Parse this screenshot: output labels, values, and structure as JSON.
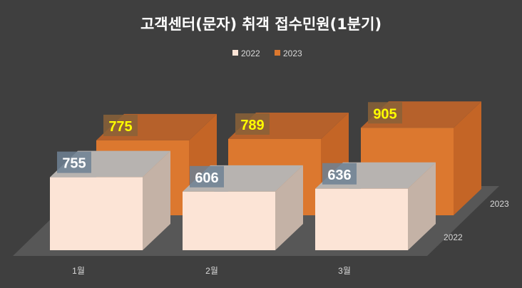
{
  "chart_data": {
    "type": "bar",
    "title": "고객센터(문자) 취객 접수민원(1분기)",
    "categories": [
      "1월",
      "2월",
      "3월"
    ],
    "series": [
      {
        "name": "2022",
        "values": [
          755,
          606,
          636
        ]
      },
      {
        "name": "2023",
        "values": [
          775,
          789,
          905
        ]
      }
    ],
    "depth_labels": [
      "2022",
      "2023"
    ],
    "legend_position": "top",
    "ylim": [
      0,
      1000
    ],
    "grid": false,
    "three_d": true
  },
  "colors": {
    "background": "#3f3f3f",
    "floor": "#575757",
    "s2022_front": "#fce4d6",
    "s2022_side": "#c4b2a6",
    "s2022_top": "#b7b3b0",
    "s2023_front": "#dc782f",
    "s2023_side": "#c46526",
    "s2023_top": "#b6612b",
    "label_2022_bg": "#6f8194",
    "label_2023_bg": "#8a6238",
    "label_2022_text": "#ffffff",
    "label_2023_text": "#ffff00",
    "title_text": "#ffffff",
    "axis_text": "#d9d9d9"
  }
}
